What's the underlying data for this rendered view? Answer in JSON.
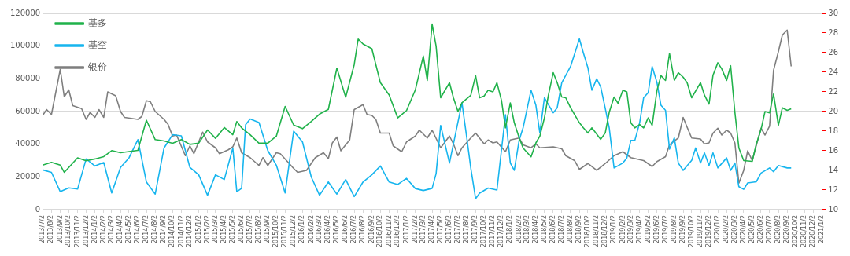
{
  "chart_data": {
    "type": "line",
    "legend": "top left",
    "grid": "y",
    "xlim": [
      "2013-07-02",
      "2021-01-02"
    ],
    "xticks": [
      {
        "value": "2013-07-02",
        "label": "2013/7/2"
      },
      {
        "value": "2013-08-02",
        "label": "2013/8/2"
      },
      {
        "value": "2013-09-02",
        "label": "2013/9/2"
      },
      {
        "value": "2013-10-02",
        "label": "2013/10/2"
      },
      {
        "value": "2013-11-02",
        "label": "2013/11/2"
      },
      {
        "value": "2013-12-02",
        "label": "2013/12/2"
      },
      {
        "value": "2014-01-02",
        "label": "2014/1/2"
      },
      {
        "value": "2014-02-02",
        "label": "2014/2/2"
      },
      {
        "value": "2014-03-02",
        "label": "2014/3/2"
      },
      {
        "value": "2014-04-02",
        "label": "2014/4/2"
      },
      {
        "value": "2014-05-02",
        "label": "2014/5/2"
      },
      {
        "value": "2014-06-02",
        "label": "2014/6/2"
      },
      {
        "value": "2014-07-02",
        "label": "2014/7/2"
      },
      {
        "value": "2014-08-02",
        "label": "2014/8/2"
      },
      {
        "value": "2014-09-02",
        "label": "2014/9/2"
      },
      {
        "value": "2014-10-02",
        "label": "2014/10/2"
      },
      {
        "value": "2014-11-02",
        "label": "2014/11/2"
      },
      {
        "value": "2014-12-02",
        "label": "2014/12/2"
      },
      {
        "value": "2015-01-02",
        "label": "2015/1/2"
      },
      {
        "value": "2015-02-02",
        "label": "2015/2/2"
      },
      {
        "value": "2015-03-02",
        "label": "2015/3/2"
      },
      {
        "value": "2015-04-02",
        "label": "2015/4/2"
      },
      {
        "value": "2015-05-02",
        "label": "2015/5/2"
      },
      {
        "value": "2015-06-02",
        "label": "2015/6/2"
      },
      {
        "value": "2015-07-02",
        "label": "2015/7/2"
      },
      {
        "value": "2015-08-02",
        "label": "2015/8/2"
      },
      {
        "value": "2015-09-02",
        "label": "2015/9/2"
      },
      {
        "value": "2015-10-02",
        "label": "2015/10/2"
      },
      {
        "value": "2015-11-02",
        "label": "2015/11/2"
      },
      {
        "value": "2015-12-02",
        "label": "2015/12/2"
      },
      {
        "value": "2016-01-02",
        "label": "2016/1/2"
      },
      {
        "value": "2016-02-02",
        "label": "2016/2/2"
      },
      {
        "value": "2016-03-02",
        "label": "2016/3/2"
      },
      {
        "value": "2016-04-02",
        "label": "2016/4/2"
      },
      {
        "value": "2016-05-02",
        "label": "2016/5/2"
      },
      {
        "value": "2016-06-02",
        "label": "2016/6/2"
      },
      {
        "value": "2016-07-02",
        "label": "2016/7/2"
      },
      {
        "value": "2016-08-02",
        "label": "2016/8/2"
      },
      {
        "value": "2016-09-02",
        "label": "2016/9/2"
      },
      {
        "value": "2016-10-02",
        "label": "2016/10/2"
      },
      {
        "value": "2016-11-02",
        "label": "2016/11/2"
      },
      {
        "value": "2016-12-02",
        "label": "2016/12/2"
      },
      {
        "value": "2017-01-02",
        "label": "2017/1/2"
      },
      {
        "value": "2017-02-02",
        "label": "2017/2/2"
      },
      {
        "value": "2017-03-02",
        "label": "2017/3/2"
      },
      {
        "value": "2017-04-02",
        "label": "2017/4/2"
      },
      {
        "value": "2017-05-02",
        "label": "2017/5/2"
      },
      {
        "value": "2017-06-02",
        "label": "2017/6/2"
      },
      {
        "value": "2017-07-02",
        "label": "2017/7/2"
      },
      {
        "value": "2017-08-02",
        "label": "2017/8/2"
      },
      {
        "value": "2017-09-02",
        "label": "2017/9/2"
      },
      {
        "value": "2017-10-02",
        "label": "2017/10/2"
      },
      {
        "value": "2017-11-02",
        "label": "2017/11/2"
      },
      {
        "value": "2017-12-02",
        "label": "2017/12/2"
      },
      {
        "value": "2018-01-02",
        "label": "2018/1/2"
      },
      {
        "value": "2018-02-02",
        "label": "2018/2/2"
      },
      {
        "value": "2018-03-02",
        "label": "2018/3/2"
      },
      {
        "value": "2018-04-02",
        "label": "2018/4/2"
      },
      {
        "value": "2018-05-02",
        "label": "2018/5/2"
      },
      {
        "value": "2018-06-02",
        "label": "2018/6/2"
      },
      {
        "value": "2018-07-02",
        "label": "2018/7/2"
      },
      {
        "value": "2018-08-02",
        "label": "2018/8/2"
      },
      {
        "value": "2018-09-02",
        "label": "2018/9/2"
      },
      {
        "value": "2018-10-02",
        "label": "2018/10/2"
      },
      {
        "value": "2018-11-02",
        "label": "2018/11/2"
      },
      {
        "value": "2018-12-02",
        "label": "2018/12/2"
      },
      {
        "value": "2019-01-02",
        "label": "2019/1/2"
      },
      {
        "value": "2019-02-02",
        "label": "2019/2/2"
      },
      {
        "value": "2019-03-02",
        "label": "2019/3/2"
      },
      {
        "value": "2019-04-02",
        "label": "2019/4/2"
      },
      {
        "value": "2019-05-02",
        "label": "2019/5/2"
      },
      {
        "value": "2019-06-02",
        "label": "2019/6/2"
      },
      {
        "value": "2019-07-02",
        "label": "2019/7/2"
      },
      {
        "value": "2019-08-02",
        "label": "2019/8/2"
      },
      {
        "value": "2019-09-02",
        "label": "2019/9/2"
      },
      {
        "value": "2019-10-02",
        "label": "2019/10/2"
      },
      {
        "value": "2019-11-02",
        "label": "2019/11/2"
      },
      {
        "value": "2019-12-02",
        "label": "2019/12/2"
      },
      {
        "value": "2020-01-02",
        "label": "2020/1/2"
      },
      {
        "value": "2020-02-02",
        "label": "2020/2/2"
      },
      {
        "value": "2020-03-02",
        "label": "2020/3/2"
      },
      {
        "value": "2020-04-02",
        "label": "2020/4/2"
      },
      {
        "value": "2020-05-02",
        "label": "2020/5/2"
      },
      {
        "value": "2020-06-02",
        "label": "2020/6/2"
      },
      {
        "value": "2020-07-02",
        "label": "2020/7/2"
      },
      {
        "value": "2020-08-02",
        "label": "2020/8/2"
      },
      {
        "value": "2020-09-02",
        "label": "2020/9/2"
      },
      {
        "value": "2020-10-02",
        "label": "2020/10/2"
      },
      {
        "value": "2020-11-02",
        "label": "2020/11/2"
      },
      {
        "value": "2020-12-02",
        "label": "2020/12/2"
      },
      {
        "value": "2021-01-02",
        "label": "2021/1/2"
      }
    ],
    "ylim": [
      0,
      120000
    ],
    "yticks": [
      0,
      20000,
      40000,
      60000,
      80000,
      100000,
      120000
    ],
    "y2lim": [
      10,
      30
    ],
    "y2ticks": [
      10,
      12,
      14,
      16,
      18,
      20,
      22,
      24,
      26,
      28,
      30
    ],
    "series": [
      {
        "name": "基多",
        "color": "#21b24b",
        "x": [
          "2013-07-02",
          "2013-08-02",
          "2013-09-02",
          "2013-09-16",
          "2013-10-02",
          "2013-11-02",
          "2013-12-02",
          "2014-01-02",
          "2014-02-02",
          "2014-03-02",
          "2014-04-02",
          "2014-05-02",
          "2014-06-02",
          "2014-07-02",
          "2014-08-02",
          "2014-09-02",
          "2014-10-02",
          "2014-11-02",
          "2014-12-02",
          "2015-01-02",
          "2015-02-02",
          "2015-03-02",
          "2015-04-02",
          "2015-05-02",
          "2015-05-16",
          "2015-06-02",
          "2015-07-02",
          "2015-08-02",
          "2015-09-02",
          "2015-10-02",
          "2015-11-02",
          "2015-12-02",
          "2016-01-02",
          "2016-02-02",
          "2016-03-02",
          "2016-04-02",
          "2016-05-02",
          "2016-06-02",
          "2016-07-02",
          "2016-07-16",
          "2016-08-02",
          "2016-09-02",
          "2016-10-02",
          "2016-11-02",
          "2016-12-02",
          "2017-01-02",
          "2017-02-02",
          "2017-03-02",
          "2017-03-16",
          "2017-04-02",
          "2017-04-16",
          "2017-05-02",
          "2017-06-02",
          "2017-06-16",
          "2017-07-02",
          "2017-07-16",
          "2017-08-16",
          "2017-09-02",
          "2017-09-16",
          "2017-10-02",
          "2017-10-16",
          "2017-11-02",
          "2017-11-16",
          "2017-12-02",
          "2017-12-16",
          "2018-01-02",
          "2018-01-16",
          "2018-02-02",
          "2018-02-16",
          "2018-03-16",
          "2018-04-02",
          "2018-04-16",
          "2018-05-02",
          "2018-05-16",
          "2018-06-02",
          "2018-06-16",
          "2018-07-02",
          "2018-07-16",
          "2018-08-02",
          "2018-09-02",
          "2018-09-16",
          "2018-10-02",
          "2018-10-16",
          "2018-11-16",
          "2018-12-02",
          "2018-12-16",
          "2019-01-02",
          "2019-01-16",
          "2019-02-02",
          "2019-02-16",
          "2019-03-02",
          "2019-03-16",
          "2019-04-02",
          "2019-04-16",
          "2019-05-02",
          "2019-05-16",
          "2019-06-02",
          "2019-06-16",
          "2019-07-02",
          "2019-07-16",
          "2019-08-02",
          "2019-08-16",
          "2019-09-02",
          "2019-09-16",
          "2019-10-02",
          "2019-11-02",
          "2019-11-16",
          "2019-12-02",
          "2019-12-16",
          "2020-01-02",
          "2020-01-16",
          "2020-02-02",
          "2020-02-16",
          "2020-03-02",
          "2020-03-16",
          "2020-04-02",
          "2020-05-02",
          "2020-05-16",
          "2020-06-02",
          "2020-06-16",
          "2020-07-02",
          "2020-07-16",
          "2020-08-02",
          "2020-08-16",
          "2020-09-02",
          "2020-09-16"
        ],
        "values": [
          27200,
          28900,
          27200,
          22800,
          25800,
          31700,
          29900,
          31000,
          32400,
          36100,
          34800,
          35500,
          36200,
          54700,
          42800,
          42000,
          40600,
          42800,
          39900,
          40600,
          48700,
          43600,
          50200,
          45800,
          53900,
          50000,
          45800,
          40600,
          40600,
          44900,
          63100,
          51700,
          49500,
          53900,
          58400,
          61300,
          86500,
          68700,
          88700,
          104300,
          101300,
          98400,
          77600,
          70100,
          56100,
          60600,
          73200,
          93900,
          79000,
          113500,
          100000,
          68400,
          77600,
          68400,
          60000,
          65300,
          69900,
          81900,
          68400,
          69500,
          73000,
          72000,
          77600,
          66800,
          50000,
          65300,
          53100,
          44000,
          37700,
          32300,
          40800,
          45000,
          56100,
          70000,
          83700,
          77600,
          68900,
          68400,
          62300,
          53100,
          50000,
          46900,
          50000,
          43000,
          46900,
          59500,
          68900,
          65000,
          73000,
          72000,
          53000,
          50000,
          52000,
          50000,
          56100,
          51500,
          73000,
          81900,
          79000,
          95500,
          79000,
          83700,
          81000,
          77600,
          68400,
          77600,
          70000,
          64500,
          82200,
          89800,
          86000,
          79000,
          88000,
          59500,
          37700,
          30000,
          29500,
          40000,
          49000,
          60000,
          59200,
          70700,
          51500,
          62300,
          60700,
          61700
        ]
      },
      {
        "name": "基空",
        "color": "#17b5ee",
        "x": [
          "2013-07-02",
          "2013-08-02",
          "2013-09-02",
          "2013-10-02",
          "2013-11-02",
          "2013-12-02",
          "2014-01-02",
          "2014-02-02",
          "2014-03-02",
          "2014-04-02",
          "2014-05-02",
          "2014-06-02",
          "2014-07-02",
          "2014-08-02",
          "2014-09-02",
          "2014-10-02",
          "2014-11-02",
          "2014-12-02",
          "2015-01-02",
          "2015-02-02",
          "2015-03-02",
          "2015-04-02",
          "2015-05-02",
          "2015-05-16",
          "2015-06-02",
          "2015-06-16",
          "2015-07-02",
          "2015-08-02",
          "2015-09-02",
          "2015-10-02",
          "2015-11-02",
          "2015-12-02",
          "2016-01-02",
          "2016-02-02",
          "2016-03-02",
          "2016-04-02",
          "2016-05-02",
          "2016-06-02",
          "2016-07-02",
          "2016-08-02",
          "2016-09-02",
          "2016-10-02",
          "2016-11-02",
          "2016-12-02",
          "2017-01-02",
          "2017-02-02",
          "2017-03-02",
          "2017-04-02",
          "2017-04-16",
          "2017-05-02",
          "2017-06-02",
          "2017-07-16",
          "2017-08-02",
          "2017-08-16",
          "2017-09-02",
          "2017-09-16",
          "2017-10-16",
          "2017-11-16",
          "2017-12-16",
          "2018-01-02",
          "2018-01-16",
          "2018-02-02",
          "2018-02-16",
          "2018-03-16",
          "2018-04-02",
          "2018-04-16",
          "2018-05-02",
          "2018-06-02",
          "2018-06-16",
          "2018-07-02",
          "2018-08-02",
          "2018-09-02",
          "2018-09-16",
          "2018-10-02",
          "2018-10-16",
          "2018-11-02",
          "2018-11-16",
          "2018-12-02",
          "2018-12-16",
          "2019-01-02",
          "2019-02-02",
          "2019-02-16",
          "2019-03-02",
          "2019-03-16",
          "2019-04-02",
          "2019-04-16",
          "2019-05-02",
          "2019-05-16",
          "2019-06-02",
          "2019-06-16",
          "2019-07-02",
          "2019-07-16",
          "2019-08-02",
          "2019-08-16",
          "2019-09-02",
          "2019-10-02",
          "2019-10-16",
          "2019-11-02",
          "2019-11-16",
          "2019-12-02",
          "2019-12-16",
          "2020-01-02",
          "2020-02-02",
          "2020-02-16",
          "2020-03-02",
          "2020-03-16",
          "2020-04-02",
          "2020-04-16",
          "2020-05-16",
          "2020-06-02",
          "2020-07-02",
          "2020-07-16",
          "2020-08-02",
          "2020-09-02",
          "2020-09-16"
        ],
        "values": [
          24300,
          22800,
          11000,
          13300,
          12600,
          31000,
          26700,
          28800,
          10200,
          25800,
          31700,
          42800,
          16900,
          9500,
          37700,
          45800,
          45100,
          25800,
          21300,
          8800,
          21300,
          18400,
          37700,
          11000,
          13000,
          52000,
          55400,
          53300,
          36100,
          27200,
          10200,
          48000,
          41400,
          19900,
          8800,
          16900,
          9500,
          18400,
          8000,
          16900,
          21300,
          26700,
          16900,
          15400,
          19100,
          12900,
          11700,
          13000,
          22000,
          51500,
          28500,
          65300,
          43900,
          25500,
          6700,
          10100,
          13200,
          12000,
          58000,
          28500,
          24000,
          42300,
          50000,
          73000,
          63800,
          46900,
          68400,
          59200,
          62300,
          77600,
          87500,
          104400,
          95900,
          86800,
          73000,
          80000,
          75000,
          62000,
          50000,
          25500,
          28500,
          31600,
          42300,
          42300,
          53100,
          68400,
          71500,
          87500,
          77600,
          63800,
          60700,
          37000,
          43900,
          28500,
          24000,
          30100,
          37700,
          28500,
          34700,
          27000,
          34700,
          25500,
          31600,
          24000,
          28500,
          14000,
          12400,
          16300,
          17000,
          22400,
          25500,
          23200,
          27000,
          25500,
          25500
        ]
      },
      {
        "name": "银价",
        "color": "#7f7f7f",
        "axis": "y2",
        "x": [
          "2013-07-02",
          "2013-07-16",
          "2013-08-02",
          "2013-09-02",
          "2013-09-16",
          "2013-10-02",
          "2013-10-16",
          "2013-11-16",
          "2013-12-02",
          "2013-12-16",
          "2014-01-02",
          "2014-01-16",
          "2014-02-02",
          "2014-02-16",
          "2014-03-16",
          "2014-04-02",
          "2014-04-16",
          "2014-06-02",
          "2014-06-16",
          "2014-07-02",
          "2014-07-16",
          "2014-08-02",
          "2014-09-02",
          "2014-09-16",
          "2014-10-02",
          "2014-10-16",
          "2014-11-16",
          "2014-12-02",
          "2014-12-16",
          "2015-01-16",
          "2015-02-02",
          "2015-03-02",
          "2015-03-16",
          "2015-04-16",
          "2015-05-02",
          "2015-05-16",
          "2015-06-02",
          "2015-07-02",
          "2015-08-02",
          "2015-08-16",
          "2015-09-02",
          "2015-10-02",
          "2015-10-16",
          "2015-12-02",
          "2015-12-16",
          "2016-01-16",
          "2016-02-16",
          "2016-03-16",
          "2016-04-02",
          "2016-04-16",
          "2016-05-02",
          "2016-05-16",
          "2016-06-16",
          "2016-07-02",
          "2016-08-02",
          "2016-08-16",
          "2016-09-02",
          "2016-09-16",
          "2016-10-02",
          "2016-11-02",
          "2016-11-16",
          "2016-12-16",
          "2017-01-02",
          "2017-02-02",
          "2017-02-16",
          "2017-03-16",
          "2017-04-02",
          "2017-05-02",
          "2017-06-02",
          "2017-06-16",
          "2017-07-02",
          "2017-07-16",
          "2017-08-16",
          "2017-09-02",
          "2017-10-02",
          "2017-10-16",
          "2017-11-02",
          "2017-11-16",
          "2017-12-16",
          "2018-01-02",
          "2018-02-02",
          "2018-02-16",
          "2018-03-16",
          "2018-04-02",
          "2018-04-16",
          "2018-06-02",
          "2018-07-02",
          "2018-07-16",
          "2018-08-16",
          "2018-09-02",
          "2018-10-02",
          "2018-11-02",
          "2018-12-02",
          "2019-01-02",
          "2019-02-02",
          "2019-03-02",
          "2019-04-16",
          "2019-05-16",
          "2019-06-02",
          "2019-07-02",
          "2019-07-16",
          "2019-08-16",
          "2019-09-02",
          "2019-09-16",
          "2019-10-02",
          "2019-11-02",
          "2019-11-16",
          "2019-12-02",
          "2019-12-16",
          "2020-01-02",
          "2020-01-16",
          "2020-02-02",
          "2020-02-16",
          "2020-03-02",
          "2020-03-16",
          "2020-04-02",
          "2020-04-16",
          "2020-05-02",
          "2020-06-02",
          "2020-06-16",
          "2020-07-02",
          "2020-07-16",
          "2020-08-02",
          "2020-08-16",
          "2020-09-02",
          "2020-09-16"
        ],
        "values": [
          19.6,
          20.2,
          19.7,
          24.3,
          21.5,
          22.2,
          20.6,
          20.3,
          19.2,
          19.9,
          19.4,
          20.2,
          19.4,
          22.0,
          21.6,
          20.0,
          19.4,
          19.2,
          19.5,
          21.1,
          21.0,
          20.0,
          19.2,
          18.7,
          17.5,
          17.6,
          15.5,
          16.5,
          15.7,
          17.9,
          16.9,
          16.3,
          15.7,
          16.1,
          16.4,
          17.3,
          15.8,
          15.3,
          14.5,
          15.3,
          14.5,
          15.8,
          15.7,
          14.2,
          13.8,
          14.0,
          15.3,
          15.8,
          15.2,
          16.8,
          17.4,
          16.0,
          17.1,
          20.2,
          20.7,
          19.7,
          19.6,
          19.2,
          17.8,
          17.8,
          16.5,
          15.9,
          16.9,
          17.5,
          18.1,
          17.3,
          18.1,
          16.3,
          17.5,
          16.7,
          15.5,
          16.3,
          17.3,
          17.8,
          16.7,
          17.1,
          16.8,
          16.9,
          15.9,
          17.1,
          17.3,
          16.6,
          16.3,
          16.7,
          16.3,
          16.4,
          16.2,
          15.5,
          15.0,
          14.1,
          14.7,
          14.0,
          14.7,
          15.5,
          15.9,
          15.3,
          15.0,
          14.4,
          14.9,
          15.4,
          16.6,
          17.3,
          19.4,
          18.4,
          17.3,
          17.2,
          16.7,
          16.8,
          17.8,
          18.3,
          17.6,
          18.1,
          17.8,
          16.8,
          12.7,
          14.0,
          16.0,
          15.0,
          18.3,
          17.6,
          18.5,
          24.2,
          26.1,
          27.8,
          28.3,
          24.6
        ]
      }
    ]
  }
}
